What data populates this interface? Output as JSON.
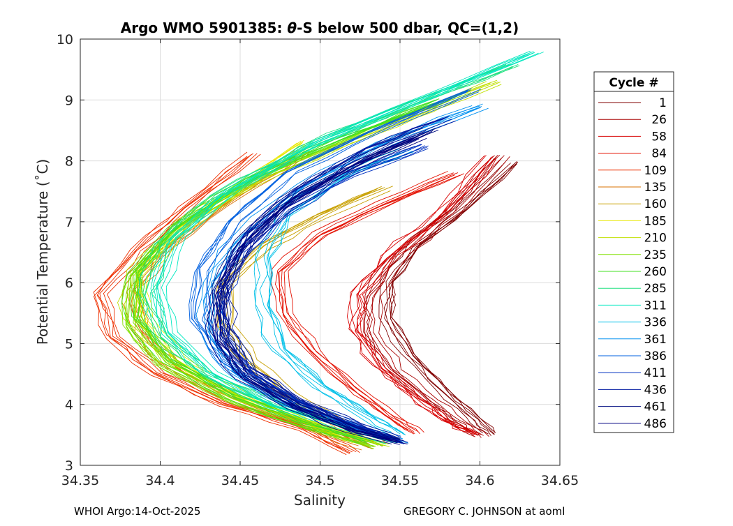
{
  "chart_data": {
    "type": "line",
    "title_prefix": "Argo WMO 5901385: ",
    "title_theta": "θ",
    "title_suffix": "-S below 500 dbar,  QC=(1,2)",
    "xlabel": "Salinity",
    "ylabel": "Potential Temperature (˚C)",
    "xlim": [
      34.35,
      34.65
    ],
    "ylim": [
      3,
      10
    ],
    "xticks": [
      34.35,
      34.4,
      34.45,
      34.5,
      34.55,
      34.6,
      34.65
    ],
    "xtick_labels": [
      "34.35",
      "34.4",
      "34.45",
      "34.5",
      "34.55",
      "34.6",
      "34.65"
    ],
    "yticks": [
      3,
      4,
      5,
      6,
      7,
      8,
      9,
      10
    ],
    "ytick_labels": [
      "3",
      "4",
      "5",
      "6",
      "7",
      "8",
      "9",
      "10"
    ],
    "grid": true,
    "legend_title": "Cycle #",
    "legend_position": "right, outside axes",
    "series": [
      {
        "name": "1",
        "color": "#800000",
        "values": [
          [
            34.621,
            7.95
          ],
          [
            34.59,
            7.2
          ],
          [
            34.56,
            6.6
          ],
          [
            34.543,
            6.0
          ],
          [
            34.542,
            5.4
          ],
          [
            34.556,
            4.8
          ],
          [
            34.578,
            4.2
          ],
          [
            34.597,
            3.75
          ],
          [
            34.607,
            3.5
          ]
        ]
      },
      {
        "name": "26",
        "color": "#a80000",
        "values": [
          [
            34.613,
            8.1
          ],
          [
            34.583,
            7.2
          ],
          [
            34.55,
            6.5
          ],
          [
            34.532,
            5.8
          ],
          [
            34.531,
            5.2
          ],
          [
            34.545,
            4.6
          ],
          [
            34.568,
            4.1
          ],
          [
            34.585,
            3.75
          ],
          [
            34.6,
            3.5
          ]
        ]
      },
      {
        "name": "58",
        "color": "#d80000",
        "values": [
          [
            34.607,
            8.05
          ],
          [
            34.575,
            7.1
          ],
          [
            34.542,
            6.4
          ],
          [
            34.523,
            5.8
          ],
          [
            34.522,
            5.2
          ],
          [
            34.537,
            4.6
          ],
          [
            34.56,
            4.1
          ],
          [
            34.58,
            3.7
          ],
          [
            34.597,
            3.5
          ]
        ]
      },
      {
        "name": "84",
        "color": "#e41000",
        "values": [
          [
            34.585,
            7.8
          ],
          [
            34.54,
            7.3
          ],
          [
            34.5,
            6.8
          ],
          [
            34.475,
            6.2
          ],
          [
            34.478,
            5.5
          ],
          [
            34.495,
            4.9
          ],
          [
            34.52,
            4.3
          ],
          [
            34.545,
            3.8
          ],
          [
            34.56,
            3.55
          ]
        ]
      },
      {
        "name": "109",
        "color": "#ee3000",
        "values": [
          [
            34.458,
            8.1
          ],
          [
            34.415,
            7.2
          ],
          [
            34.385,
            6.5
          ],
          [
            34.362,
            5.8
          ],
          [
            34.37,
            5.1
          ],
          [
            34.398,
            4.5
          ],
          [
            34.44,
            4.0
          ],
          [
            34.49,
            3.6
          ],
          [
            34.52,
            3.2
          ]
        ]
      },
      {
        "name": "135",
        "color": "#d87000",
        "values": [
          [
            34.49,
            8.15
          ],
          [
            34.44,
            7.3
          ],
          [
            34.405,
            6.6
          ],
          [
            34.383,
            5.9
          ],
          [
            34.388,
            5.2
          ],
          [
            34.41,
            4.6
          ],
          [
            34.45,
            4.05
          ],
          [
            34.495,
            3.65
          ],
          [
            34.53,
            3.3
          ]
        ]
      },
      {
        "name": "160",
        "color": "#c8a000",
        "values": [
          [
            34.54,
            7.55
          ],
          [
            34.5,
            7.1
          ],
          [
            34.465,
            6.6
          ],
          [
            34.44,
            6.0
          ],
          [
            34.44,
            5.3
          ],
          [
            34.455,
            4.7
          ],
          [
            34.48,
            4.15
          ],
          [
            34.51,
            3.7
          ],
          [
            34.535,
            3.35
          ]
        ]
      },
      {
        "name": "185",
        "color": "#e8e800",
        "values": [
          [
            34.49,
            8.3
          ],
          [
            34.445,
            7.5
          ],
          [
            34.41,
            6.8
          ],
          [
            34.387,
            6.1
          ],
          [
            34.39,
            5.4
          ],
          [
            34.41,
            4.75
          ],
          [
            34.45,
            4.15
          ],
          [
            34.49,
            3.75
          ],
          [
            34.52,
            3.4
          ]
        ]
      },
      {
        "name": "210",
        "color": "#c0e000",
        "values": [
          [
            34.61,
            9.3
          ],
          [
            34.545,
            8.6
          ],
          [
            34.47,
            7.8
          ],
          [
            34.415,
            7.0
          ],
          [
            34.385,
            6.2
          ],
          [
            34.383,
            5.4
          ],
          [
            34.405,
            4.7
          ],
          [
            34.45,
            4.1
          ],
          [
            34.5,
            3.65
          ],
          [
            34.54,
            3.35
          ]
        ]
      },
      {
        "name": "235",
        "color": "#80e000",
        "values": [
          [
            34.59,
            9.1
          ],
          [
            34.53,
            8.5
          ],
          [
            34.46,
            7.7
          ],
          [
            34.41,
            6.9
          ],
          [
            34.382,
            6.1
          ],
          [
            34.38,
            5.3
          ],
          [
            34.4,
            4.65
          ],
          [
            34.445,
            4.05
          ],
          [
            34.495,
            3.6
          ],
          [
            34.535,
            3.3
          ]
        ]
      },
      {
        "name": "260",
        "color": "#40e020",
        "values": [
          [
            34.575,
            9.0
          ],
          [
            34.515,
            8.4
          ],
          [
            34.455,
            7.7
          ],
          [
            34.41,
            6.95
          ],
          [
            34.385,
            6.2
          ],
          [
            34.384,
            5.45
          ],
          [
            34.405,
            4.75
          ],
          [
            34.445,
            4.15
          ],
          [
            34.49,
            3.7
          ],
          [
            34.53,
            3.4
          ]
        ]
      },
      {
        "name": "285",
        "color": "#20e080",
        "values": [
          [
            34.62,
            9.55
          ],
          [
            34.555,
            8.9
          ],
          [
            34.49,
            8.2
          ],
          [
            34.435,
            7.4
          ],
          [
            34.4,
            6.6
          ],
          [
            34.39,
            5.8
          ],
          [
            34.4,
            5.1
          ],
          [
            34.43,
            4.45
          ],
          [
            34.475,
            3.95
          ],
          [
            34.52,
            3.6
          ],
          [
            34.545,
            3.4
          ]
        ]
      },
      {
        "name": "311",
        "color": "#00e8c0",
        "values": [
          [
            34.634,
            9.8
          ],
          [
            34.57,
            9.1
          ],
          [
            34.5,
            8.35
          ],
          [
            34.445,
            7.55
          ],
          [
            34.41,
            6.75
          ],
          [
            34.398,
            5.95
          ],
          [
            34.405,
            5.2
          ],
          [
            34.43,
            4.55
          ],
          [
            34.47,
            4.0
          ],
          [
            34.515,
            3.65
          ],
          [
            34.545,
            3.4
          ]
        ]
      },
      {
        "name": "336",
        "color": "#00c0e8",
        "values": [
          [
            34.555,
            8.15
          ],
          [
            34.51,
            7.7
          ],
          [
            34.478,
            7.1
          ],
          [
            34.465,
            6.4
          ],
          [
            34.465,
            5.6
          ],
          [
            34.475,
            4.9
          ],
          [
            34.5,
            4.3
          ],
          [
            34.53,
            3.8
          ],
          [
            34.55,
            3.5
          ]
        ]
      },
      {
        "name": "361",
        "color": "#0090f0",
        "values": [
          [
            34.6,
            8.9
          ],
          [
            34.54,
            8.3
          ],
          [
            34.49,
            7.6
          ],
          [
            34.452,
            6.8
          ],
          [
            34.432,
            6.0
          ],
          [
            34.43,
            5.2
          ],
          [
            34.445,
            4.55
          ],
          [
            34.48,
            4.0
          ],
          [
            34.52,
            3.65
          ],
          [
            34.55,
            3.4
          ]
        ]
      },
      {
        "name": "386",
        "color": "#0060e0",
        "values": [
          [
            34.595,
            9.15
          ],
          [
            34.535,
            8.5
          ],
          [
            34.48,
            7.8
          ],
          [
            34.445,
            7.0
          ],
          [
            34.425,
            6.2
          ],
          [
            34.422,
            5.4
          ],
          [
            34.44,
            4.7
          ],
          [
            34.475,
            4.1
          ],
          [
            34.515,
            3.7
          ],
          [
            34.545,
            3.45
          ]
        ]
      },
      {
        "name": "411",
        "color": "#0030c0",
        "values": [
          [
            34.565,
            8.25
          ],
          [
            34.52,
            7.8
          ],
          [
            34.48,
            7.2
          ],
          [
            34.452,
            6.5
          ],
          [
            34.438,
            5.8
          ],
          [
            34.44,
            5.1
          ],
          [
            34.458,
            4.5
          ],
          [
            34.49,
            4.0
          ],
          [
            34.525,
            3.6
          ],
          [
            34.55,
            3.4
          ]
        ]
      },
      {
        "name": "436",
        "color": "#0018a0",
        "values": [
          [
            34.58,
            8.7
          ],
          [
            34.53,
            8.2
          ],
          [
            34.485,
            7.5
          ],
          [
            34.455,
            6.8
          ],
          [
            34.44,
            6.0
          ],
          [
            34.44,
            5.3
          ],
          [
            34.455,
            4.6
          ],
          [
            34.488,
            4.05
          ],
          [
            34.525,
            3.65
          ],
          [
            34.55,
            3.42
          ]
        ]
      },
      {
        "name": "461",
        "color": "#000c80",
        "values": [
          [
            34.57,
            8.5
          ],
          [
            34.525,
            8.0
          ],
          [
            34.48,
            7.35
          ],
          [
            34.452,
            6.65
          ],
          [
            34.438,
            5.9
          ],
          [
            34.437,
            5.15
          ],
          [
            34.452,
            4.5
          ],
          [
            34.485,
            3.98
          ],
          [
            34.52,
            3.6
          ],
          [
            34.548,
            3.4
          ]
        ]
      },
      {
        "name": "486",
        "color": "#000080",
        "values": [
          [
            34.562,
            8.4
          ],
          [
            34.52,
            7.9
          ],
          [
            34.478,
            7.25
          ],
          [
            34.45,
            6.55
          ],
          [
            34.436,
            5.8
          ],
          [
            34.436,
            5.05
          ],
          [
            34.452,
            4.45
          ],
          [
            34.485,
            3.95
          ],
          [
            34.52,
            3.58
          ],
          [
            34.55,
            3.38
          ]
        ]
      }
    ]
  },
  "footer": {
    "left": "WHOI Argo:14-Oct-2025",
    "right": "GREGORY C. JOHNSON at aoml"
  }
}
